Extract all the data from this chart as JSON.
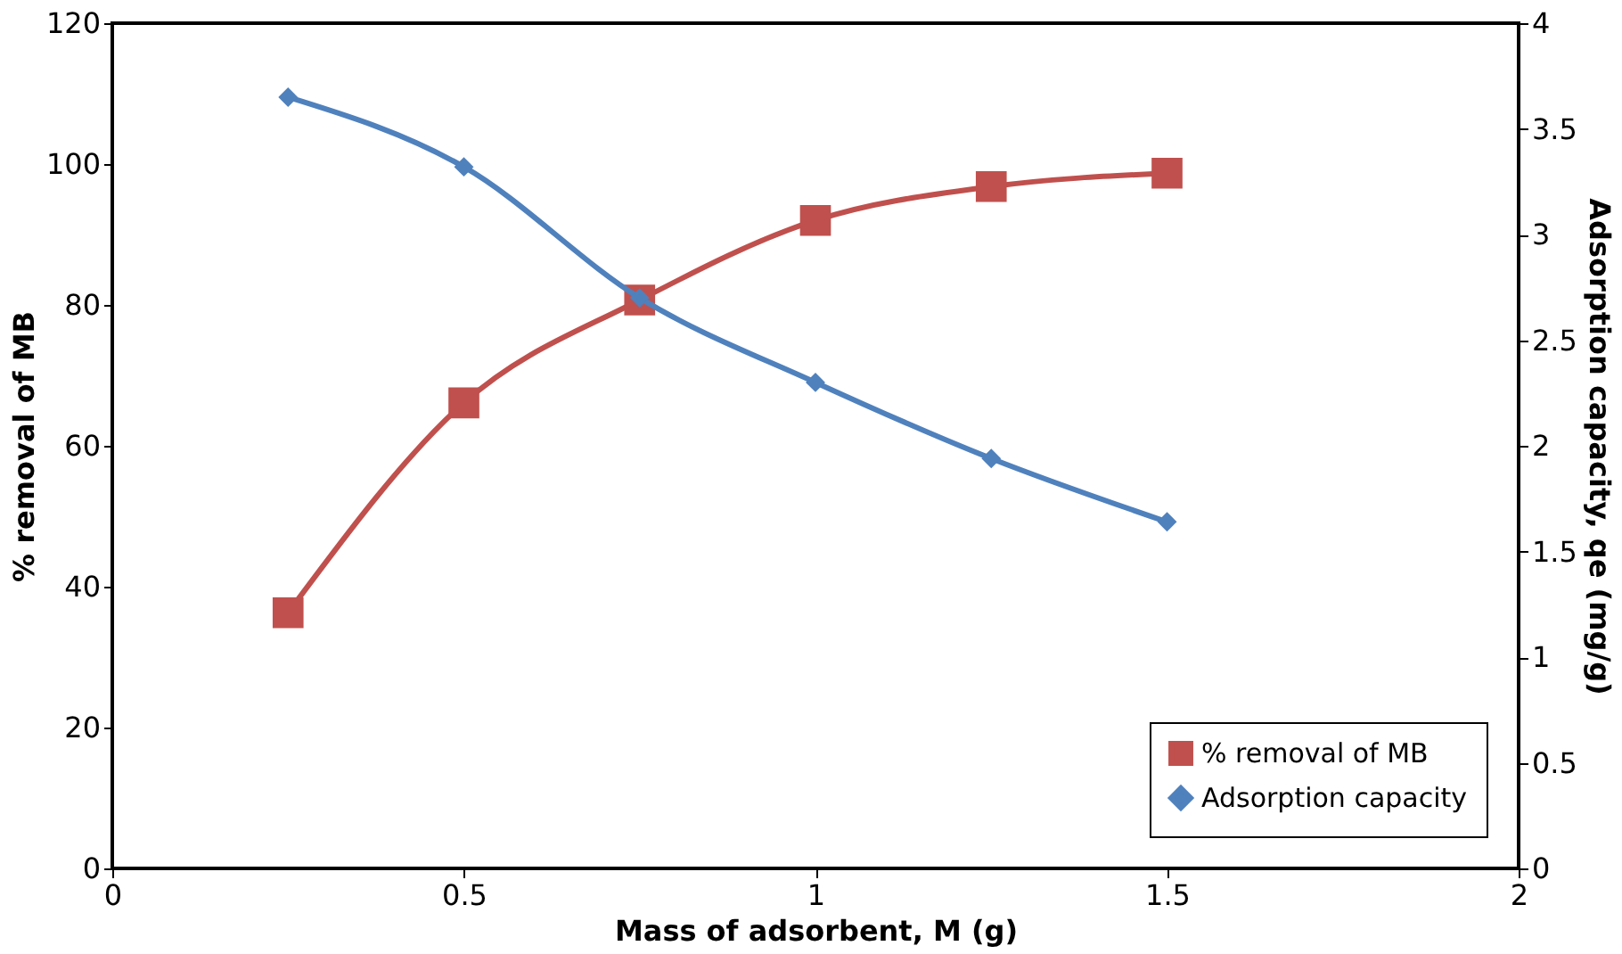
{
  "chart_data": {
    "type": "line",
    "xlabel": "Mass of adsorbent, M (g)",
    "ylabel": "% removal of MB",
    "y2label": "Adsorption capacity, qe (mg/g)",
    "x": [
      0.25,
      0.5,
      0.75,
      1,
      1.25,
      1.5
    ],
    "series": [
      {
        "name": "% removal of MB",
        "color": "#c0504d",
        "marker": "square",
        "values": [
          36.3,
          66.1,
          80.7,
          92,
          96.8,
          98.7
        ]
      },
      {
        "name": "Adsorption capacity",
        "color": "#4f81bd",
        "marker": "diamond",
        "axis": "y2",
        "values": [
          3.65,
          3.32,
          2.7,
          2.3,
          1.94,
          1.64
        ]
      }
    ],
    "xlim": [
      0,
      2
    ],
    "xticks": [
      0,
      0.5,
      1,
      1.5,
      2
    ],
    "ylim": [
      0,
      120
    ],
    "yticks": [
      0,
      20,
      40,
      60,
      80,
      100,
      120
    ],
    "y2lim": [
      0,
      4
    ],
    "y2ticks": [
      0,
      0.5,
      1,
      1.5,
      2,
      2.5,
      3,
      3.5,
      4
    ],
    "grid": false,
    "legend": "bottom right",
    "line_style": "solid"
  }
}
